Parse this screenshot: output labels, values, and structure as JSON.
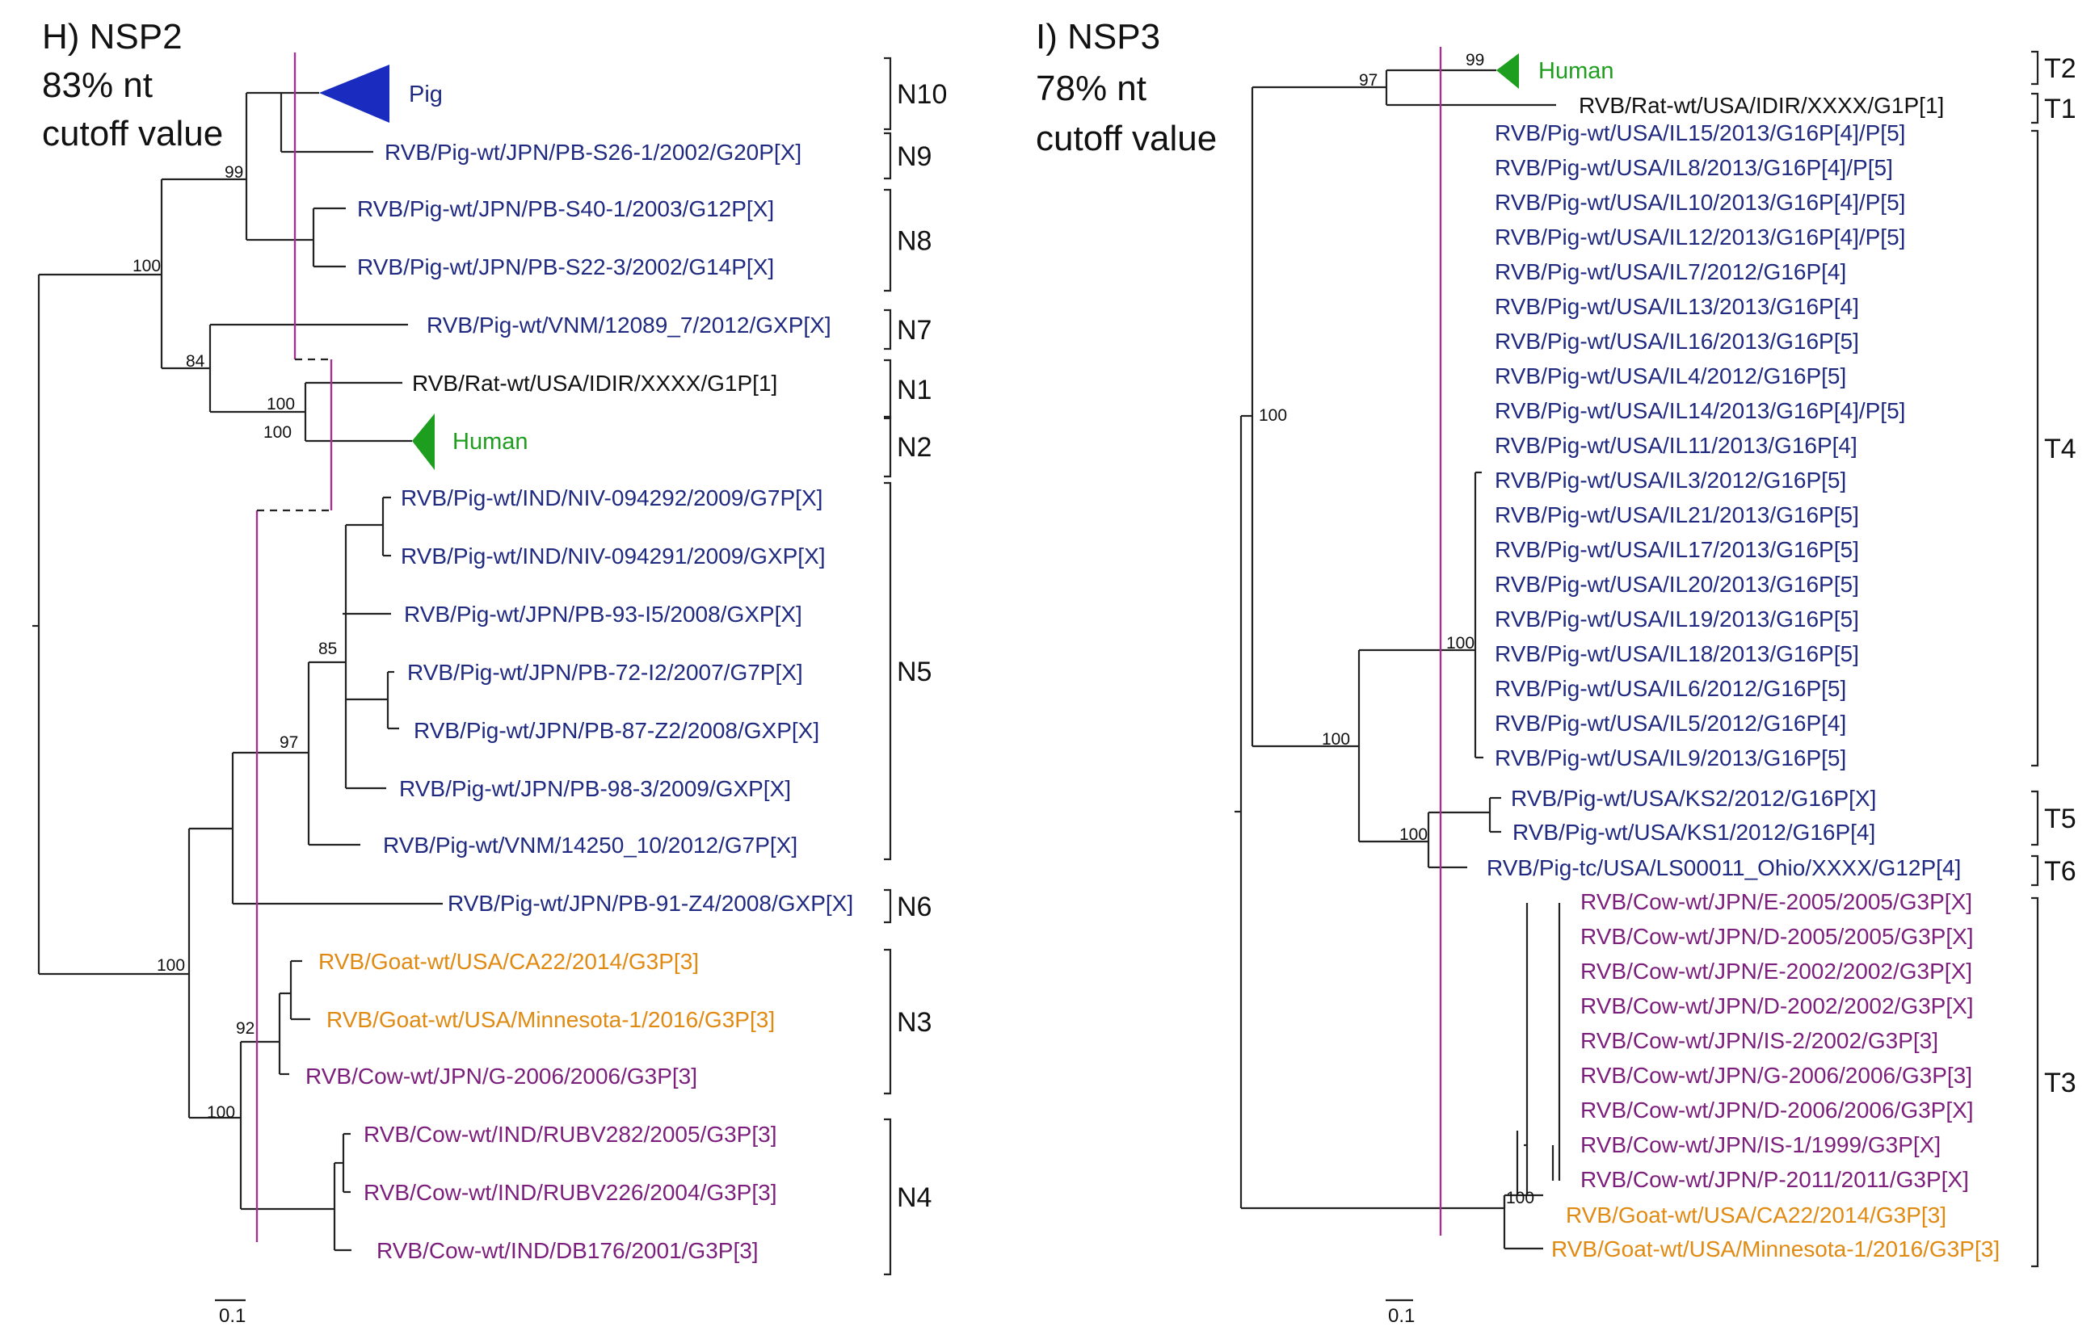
{
  "colors": {
    "pig": "#1f2a80",
    "pig_triangle": "#1a2bbf",
    "human": "#1e9e1e",
    "cow": "#7c1f7c",
    "goat": "#e08a12",
    "rat": "#111111",
    "cutoff_line": "#a2328f"
  },
  "panels": {
    "nsp2": {
      "title": "H) NSP2",
      "cutoff_line1": "83% nt",
      "cutoff_line2": "cutoff value",
      "scale_label": "0.1",
      "collapsed_pig": "Pig",
      "collapsed_human": "Human",
      "leaves": [
        {
          "label": "RVB/Pig-wt/JPN/PB-S26-1/2002/G20P[X]",
          "group": "pig"
        },
        {
          "label": "RVB/Pig-wt/JPN/PB-S40-1/2003/G12P[X]",
          "group": "pig"
        },
        {
          "label": "RVB/Pig-wt/JPN/PB-S22-3/2002/G14P[X]",
          "group": "pig"
        },
        {
          "label": "RVB/Pig-wt/VNM/12089_7/2012/GXP[X]",
          "group": "pig"
        },
        {
          "label": "RVB/Rat-wt/USA/IDIR/XXXX/G1P[1]",
          "group": "rat"
        },
        {
          "label": "RVB/Pig-wt/IND/NIV-094292/2009/G7P[X]",
          "group": "pig"
        },
        {
          "label": "RVB/Pig-wt/IND/NIV-094291/2009/GXP[X]",
          "group": "pig"
        },
        {
          "label": "RVB/Pig-wt/JPN/PB-93-I5/2008/GXP[X]",
          "group": "pig"
        },
        {
          "label": "RVB/Pig-wt/JPN/PB-72-I2/2007/G7P[X]",
          "group": "pig"
        },
        {
          "label": "RVB/Pig-wt/JPN/PB-87-Z2/2008/GXP[X]",
          "group": "pig"
        },
        {
          "label": "RVB/Pig-wt/JPN/PB-98-3/2009/GXP[X]",
          "group": "pig"
        },
        {
          "label": "RVB/Pig-wt/VNM/14250_10/2012/G7P[X]",
          "group": "pig"
        },
        {
          "label": "RVB/Pig-wt/JPN/PB-91-Z4/2008/GXP[X]",
          "group": "pig"
        },
        {
          "label": "RVB/Goat-wt/USA/CA22/2014/G3P[3]",
          "group": "goat"
        },
        {
          "label": "RVB/Goat-wt/USA/Minnesota-1/2016/G3P[3]",
          "group": "goat"
        },
        {
          "label": "RVB/Cow-wt/JPN/G-2006/2006/G3P[3]",
          "group": "cow"
        },
        {
          "label": "RVB/Cow-wt/IND/RUBV282/2005/G3P[3]",
          "group": "cow"
        },
        {
          "label": "RVB/Cow-wt/IND/RUBV226/2004/G3P[3]",
          "group": "cow"
        },
        {
          "label": "RVB/Cow-wt/IND/DB176/2001/G3P[3]",
          "group": "cow"
        }
      ],
      "bootstraps": [
        "99",
        "100",
        "84",
        "100",
        "100",
        "85",
        "97",
        "100",
        "92",
        "100"
      ],
      "clades": [
        "N10",
        "N9",
        "N8",
        "N7",
        "N1",
        "N2",
        "N5",
        "N6",
        "N3",
        "N4"
      ]
    },
    "nsp3": {
      "title": "I) NSP3",
      "cutoff_line1": "78% nt",
      "cutoff_line2": "cutoff value",
      "scale_label": "0.1",
      "collapsed_human": "Human",
      "leaves": [
        {
          "label": "RVB/Rat-wt/USA/IDIR/XXXX/G1P[1]",
          "group": "rat"
        },
        {
          "label": "RVB/Pig-wt/USA/IL15/2013/G16P[4]/P[5]",
          "group": "pig"
        },
        {
          "label": "RVB/Pig-wt/USA/IL8/2013/G16P[4]/P[5]",
          "group": "pig"
        },
        {
          "label": "RVB/Pig-wt/USA/IL10/2013/G16P[4]/P[5]",
          "group": "pig"
        },
        {
          "label": "RVB/Pig-wt/USA/IL12/2013/G16P[4]/P[5]",
          "group": "pig"
        },
        {
          "label": "RVB/Pig-wt/USA/IL7/2012/G16P[4]",
          "group": "pig"
        },
        {
          "label": "RVB/Pig-wt/USA/IL13/2013/G16P[4]",
          "group": "pig"
        },
        {
          "label": "RVB/Pig-wt/USA/IL16/2013/G16P[5]",
          "group": "pig"
        },
        {
          "label": "RVB/Pig-wt/USA/IL4/2012/G16P[5]",
          "group": "pig"
        },
        {
          "label": "RVB/Pig-wt/USA/IL14/2013/G16P[4]/P[5]",
          "group": "pig"
        },
        {
          "label": "RVB/Pig-wt/USA/IL11/2013/G16P[4]",
          "group": "pig"
        },
        {
          "label": "RVB/Pig-wt/USA/IL3/2012/G16P[5]",
          "group": "pig"
        },
        {
          "label": "RVB/Pig-wt/USA/IL21/2013/G16P[5]",
          "group": "pig"
        },
        {
          "label": "RVB/Pig-wt/USA/IL17/2013/G16P[5]",
          "group": "pig"
        },
        {
          "label": "RVB/Pig-wt/USA/IL20/2013/G16P[5]",
          "group": "pig"
        },
        {
          "label": "RVB/Pig-wt/USA/IL19/2013/G16P[5]",
          "group": "pig"
        },
        {
          "label": "RVB/Pig-wt/USA/IL18/2013/G16P[5]",
          "group": "pig"
        },
        {
          "label": "RVB/Pig-wt/USA/IL6/2012/G16P[5]",
          "group": "pig"
        },
        {
          "label": "RVB/Pig-wt/USA/IL5/2012/G16P[4]",
          "group": "pig"
        },
        {
          "label": "RVB/Pig-wt/USA/IL9/2013/G16P[5]",
          "group": "pig"
        },
        {
          "label": "RVB/Pig-wt/USA/KS2/2012/G16P[X]",
          "group": "pig"
        },
        {
          "label": "RVB/Pig-wt/USA/KS1/2012/G16P[4]",
          "group": "pig"
        },
        {
          "label": "RVB/Pig-tc/USA/LS00011_Ohio/XXXX/G12P[4]",
          "group": "pig"
        },
        {
          "label": "RVB/Cow-wt/JPN/E-2005/2005/G3P[X]",
          "group": "cow"
        },
        {
          "label": "RVB/Cow-wt/JPN/D-2005/2005/G3P[X]",
          "group": "cow"
        },
        {
          "label": "RVB/Cow-wt/JPN/E-2002/2002/G3P[X]",
          "group": "cow"
        },
        {
          "label": "RVB/Cow-wt/JPN/D-2002/2002/G3P[X]",
          "group": "cow"
        },
        {
          "label": "RVB/Cow-wt/JPN/IS-2/2002/G3P[3]",
          "group": "cow"
        },
        {
          "label": "RVB/Cow-wt/JPN/G-2006/2006/G3P[3]",
          "group": "cow"
        },
        {
          "label": "RVB/Cow-wt/JPN/D-2006/2006/G3P[X]",
          "group": "cow"
        },
        {
          "label": "RVB/Cow-wt/JPN/IS-1/1999/G3P[X]",
          "group": "cow"
        },
        {
          "label": "RVB/Cow-wt/JPN/P-2011/2011/G3P[X]",
          "group": "cow"
        },
        {
          "label": "RVB/Goat-wt/USA/CA22/2014/G3P[3]",
          "group": "goat"
        },
        {
          "label": "RVB/Goat-wt/USA/Minnesota-1/2016/G3P[3]",
          "group": "goat"
        }
      ],
      "bootstraps": [
        "99",
        "97",
        "100",
        "100",
        "100",
        "100",
        "100"
      ],
      "clades": [
        "T2",
        "T1",
        "T4",
        "T5",
        "T6",
        "T3"
      ]
    }
  }
}
